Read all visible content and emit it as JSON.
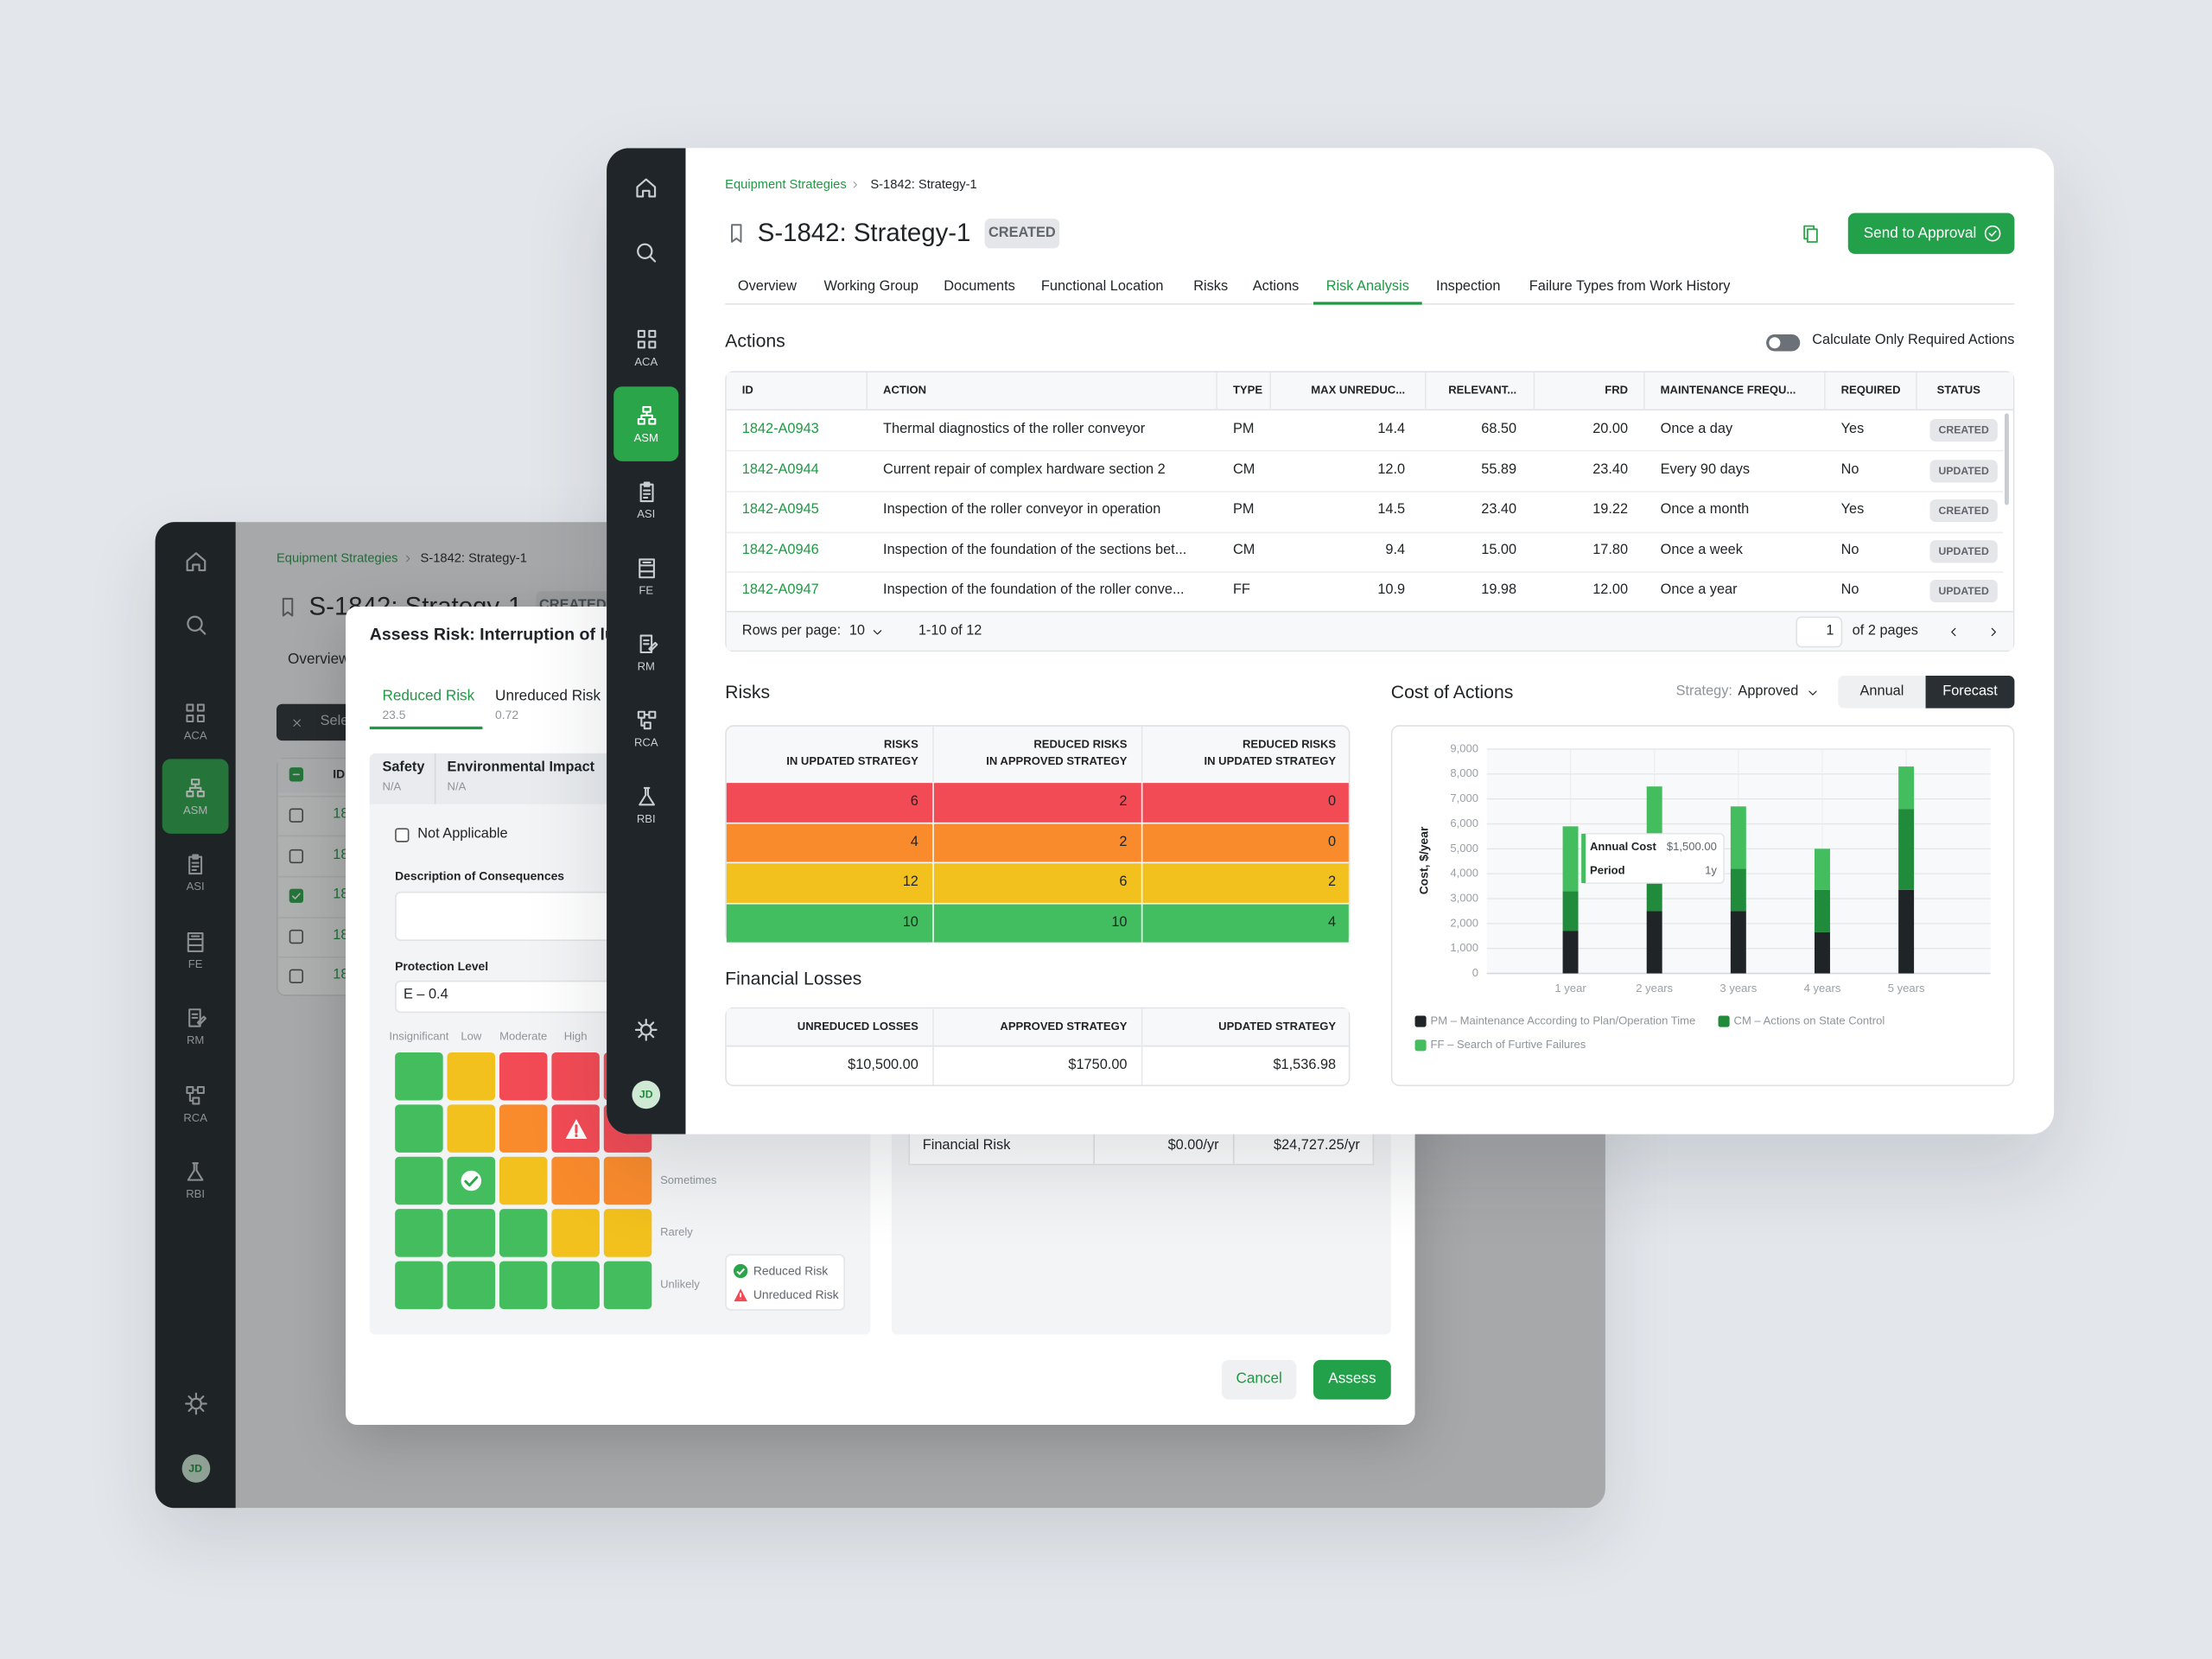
{
  "sidebar": {
    "items": [
      "ACA",
      "ASM",
      "ASI",
      "FE",
      "RM",
      "RCA",
      "RBI"
    ],
    "active": 1,
    "avatar": "JD"
  },
  "header": {
    "breadcrumb": [
      "Equipment Strategies",
      "S-1842: Strategy-1"
    ],
    "title": "S-1842: Strategy-1",
    "status": "CREATED",
    "button": "Send to Approval"
  },
  "tabs": {
    "items": [
      "Overview",
      "Working Group",
      "Documents",
      "Functional Location",
      "Risks",
      "Actions",
      "Risk Analysis",
      "Inspection",
      "Failure Types from Work History"
    ],
    "active": 6
  },
  "back_window": {
    "toolbar": "Sele",
    "checked": [
      false,
      false,
      true,
      false,
      false
    ]
  },
  "modal": {
    "title": "Assess Risk: Interruption of lub",
    "tabs": [
      {
        "label": "Reduced Risk",
        "value": "23.5"
      },
      {
        "label": "Unreduced Risk",
        "value": "0.72"
      }
    ],
    "active_tab": 0,
    "categories": [
      {
        "label": "Safety",
        "value": "N/A"
      },
      {
        "label": "Environmental Impact",
        "value": "N/A"
      }
    ],
    "not_applicable": "Not Applicable",
    "description_label": "Description of Consequences",
    "protection_label": "Protection Level",
    "protection_value": "E – 0.4",
    "matrix": {
      "columns": [
        "Insignificant",
        "Low",
        "Moderate",
        "High"
      ],
      "rows": [
        "Sometimes",
        "Rarely",
        "Unlikely"
      ],
      "palette": {
        "G": "#43bd5e",
        "Y": "#f2c11d",
        "O": "#fa8b2c",
        "R": "#f34b55"
      },
      "cells": [
        "GYRRR",
        "GYORR",
        "GGYOO",
        "GGGYY",
        "GGGGG"
      ],
      "reduced": [
        2,
        1
      ],
      "unreduced": [
        1,
        3
      ]
    },
    "legend": [
      "Reduced Risk",
      "Unreduced Risk"
    ],
    "financial_risk": {
      "label": "Financial Risk",
      "values": [
        "$0.00/yr",
        "$24,727.25/yr"
      ]
    },
    "buttons": [
      "Cancel",
      "Assess"
    ]
  },
  "actions": {
    "title": "Actions",
    "toggle": "Calculate Only Required Actions",
    "columns": [
      "ID",
      "ACTION",
      "TYPE",
      "MAX UNREDUC...",
      "RELEVANT...",
      "FRD",
      "MAINTENANCE FREQU...",
      "REQUIRED",
      "STATUS"
    ],
    "rows": [
      [
        "1842-A0943",
        "Thermal diagnostics of the roller conveyor",
        "PM",
        "14.4",
        "68.50",
        "20.00",
        "Once a day",
        "Yes",
        "CREATED"
      ],
      [
        "1842-A0944",
        "Current repair of complex hardware section 2",
        "CM",
        "12.0",
        "55.89",
        "23.40",
        "Every 90 days",
        "No",
        "UPDATED"
      ],
      [
        "1842-A0945",
        "Inspection of the roller conveyor in operation",
        "PM",
        "14.5",
        "23.40",
        "19.22",
        "Once a month",
        "Yes",
        "CREATED"
      ],
      [
        "1842-A0946",
        "Inspection of the foundation of the sections bet...",
        "CM",
        "9.4",
        "15.00",
        "17.80",
        "Once a week",
        "No",
        "UPDATED"
      ],
      [
        "1842-A0947",
        "Inspection of the foundation of the roller conve...",
        "FF",
        "10.9",
        "19.98",
        "12.00",
        "Once a year",
        "No",
        "UPDATED"
      ]
    ],
    "footer": {
      "rows_per_page": "Rows per page:",
      "page_size": "10",
      "range": "1-10 of 12",
      "page": "1",
      "pages": "of 2 pages"
    }
  },
  "risks": {
    "title": "Risks",
    "headers": [
      [
        "RISKS",
        "IN UPDATED STRATEGY"
      ],
      [
        "REDUCED RISKS",
        "IN APPROVED STRATEGY"
      ],
      [
        "REDUCED RISKS",
        "IN UPDATED STRATEGY"
      ]
    ],
    "rows": [
      {
        "color": "#f34b55",
        "values": [
          "6",
          "2",
          "0"
        ]
      },
      {
        "color": "#fa8b2c",
        "values": [
          "4",
          "2",
          "0"
        ]
      },
      {
        "color": "#f2c11d",
        "values": [
          "12",
          "6",
          "2"
        ]
      },
      {
        "color": "#42be60",
        "values": [
          "10",
          "10",
          "4"
        ]
      }
    ]
  },
  "financial_losses": {
    "title": "Financial Losses",
    "columns": [
      "UNREDUCED LOSSES",
      "APPROVED STRATEGY",
      "UPDATED STRATEGY"
    ],
    "values": [
      "$10,500.00",
      "$1750.00",
      "$1,536.98"
    ]
  },
  "cost_controls": {
    "strategy_label": "Strategy:",
    "strategy": "Approved",
    "modes": [
      "Annual",
      "Forecast"
    ],
    "active": 1
  },
  "chart_data": {
    "type": "bar",
    "stacked": true,
    "title": "Cost of Actions",
    "y_label": "Cost, $/year",
    "categories": [
      "1 year",
      "2 years",
      "3 years",
      "4 years",
      "5 years"
    ],
    "series": [
      {
        "name": "PM – Maintenance According to Plan/Operation Time",
        "color": "#1f2427",
        "values": [
          1700,
          2500,
          2500,
          1650,
          3350
        ]
      },
      {
        "name": "CM – Actions on State Control",
        "color": "#1f8b3b",
        "values": [
          1600,
          3000,
          1700,
          1700,
          3250
        ]
      },
      {
        "name": "FF – Search of Furtive Failures",
        "color": "#43bd5e",
        "values": [
          2600,
          2000,
          2500,
          1650,
          1700
        ]
      }
    ],
    "ylim": [
      0,
      9000
    ],
    "yticks": [
      0,
      {
        "value": 1000,
        "label": "1,000"
      },
      {
        "value": 2000,
        "label": "2,000"
      },
      {
        "value": 3000,
        "label": "3,000"
      },
      {
        "value": 4000,
        "label": "4,000"
      },
      {
        "value": 5000,
        "label": "5,000"
      },
      {
        "value": 6000,
        "label": "6,000"
      },
      {
        "value": 7000,
        "label": "7,000"
      },
      {
        "value": 8000,
        "label": "8,000"
      },
      {
        "value": 9000,
        "label": "9,000"
      }
    ],
    "grid": true,
    "legend": "bottom",
    "tooltip": {
      "rows": [
        {
          "label": "Annual Cost",
          "value": "$1,500.00"
        },
        {
          "label": "Period",
          "value": "1y"
        }
      ]
    }
  }
}
